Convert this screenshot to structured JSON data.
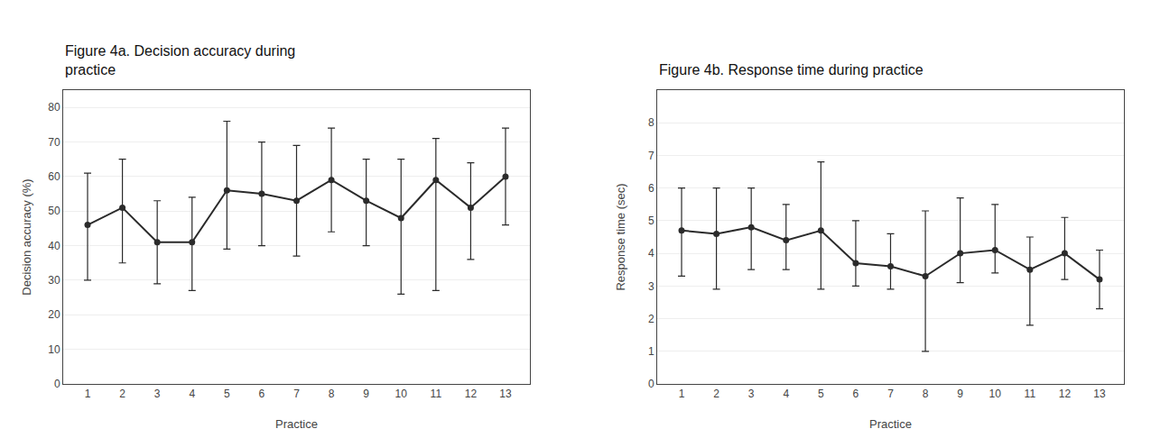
{
  "chart_data": [
    {
      "type": "line",
      "title": "Figure 4a. Decision accuracy during\npractice",
      "xlabel": "Practice",
      "ylabel": "Decision accuracy (%)",
      "x": [
        1,
        2,
        3,
        4,
        5,
        6,
        7,
        8,
        9,
        10,
        11,
        12,
        13
      ],
      "values": [
        46,
        51,
        41,
        41,
        56,
        55,
        53,
        59,
        53,
        48,
        59,
        51,
        60
      ],
      "yerr_upper": [
        15,
        14,
        12,
        13,
        20,
        15,
        16,
        15,
        12,
        17,
        12,
        13,
        14
      ],
      "yerr_lower": [
        16,
        16,
        12,
        14,
        17,
        15,
        16,
        15,
        13,
        22,
        32,
        15,
        14
      ],
      "xlim": [
        0.3,
        13.7
      ],
      "xticks": [
        1,
        2,
        3,
        4,
        5,
        6,
        7,
        8,
        9,
        10,
        11,
        12,
        13
      ],
      "ylim": [
        0,
        85
      ],
      "yticks": [
        0,
        10,
        20,
        30,
        40,
        50,
        60,
        70,
        80
      ],
      "color": "#2b2b2b",
      "marker": "circle",
      "line_style": "solid",
      "grid": "y"
    },
    {
      "type": "line",
      "title": "Figure 4b. Response time during practice",
      "xlabel": "Practice",
      "ylabel": "Response time (sec)",
      "x": [
        1,
        2,
        3,
        4,
        5,
        6,
        7,
        8,
        9,
        10,
        11,
        12,
        13
      ],
      "values": [
        4.7,
        4.6,
        4.8,
        4.4,
        4.7,
        3.7,
        3.6,
        3.3,
        4.0,
        4.1,
        3.5,
        4.0,
        3.2
      ],
      "yerr_upper": [
        1.3,
        1.4,
        1.2,
        1.1,
        2.1,
        1.3,
        1.0,
        2.0,
        1.7,
        1.4,
        1.0,
        1.1,
        0.9
      ],
      "yerr_lower": [
        1.4,
        1.7,
        1.3,
        0.9,
        1.8,
        0.7,
        0.7,
        2.3,
        0.9,
        0.7,
        1.7,
        0.8,
        0.9
      ],
      "xlim": [
        0.3,
        13.7
      ],
      "xticks": [
        1,
        2,
        3,
        4,
        5,
        6,
        7,
        8,
        9,
        10,
        11,
        12,
        13
      ],
      "ylim": [
        0,
        9
      ],
      "yticks": [
        0,
        1,
        2,
        3,
        4,
        5,
        6,
        7,
        8
      ],
      "color": "#2b2b2b",
      "marker": "circle",
      "line_style": "solid",
      "grid": "y"
    }
  ]
}
